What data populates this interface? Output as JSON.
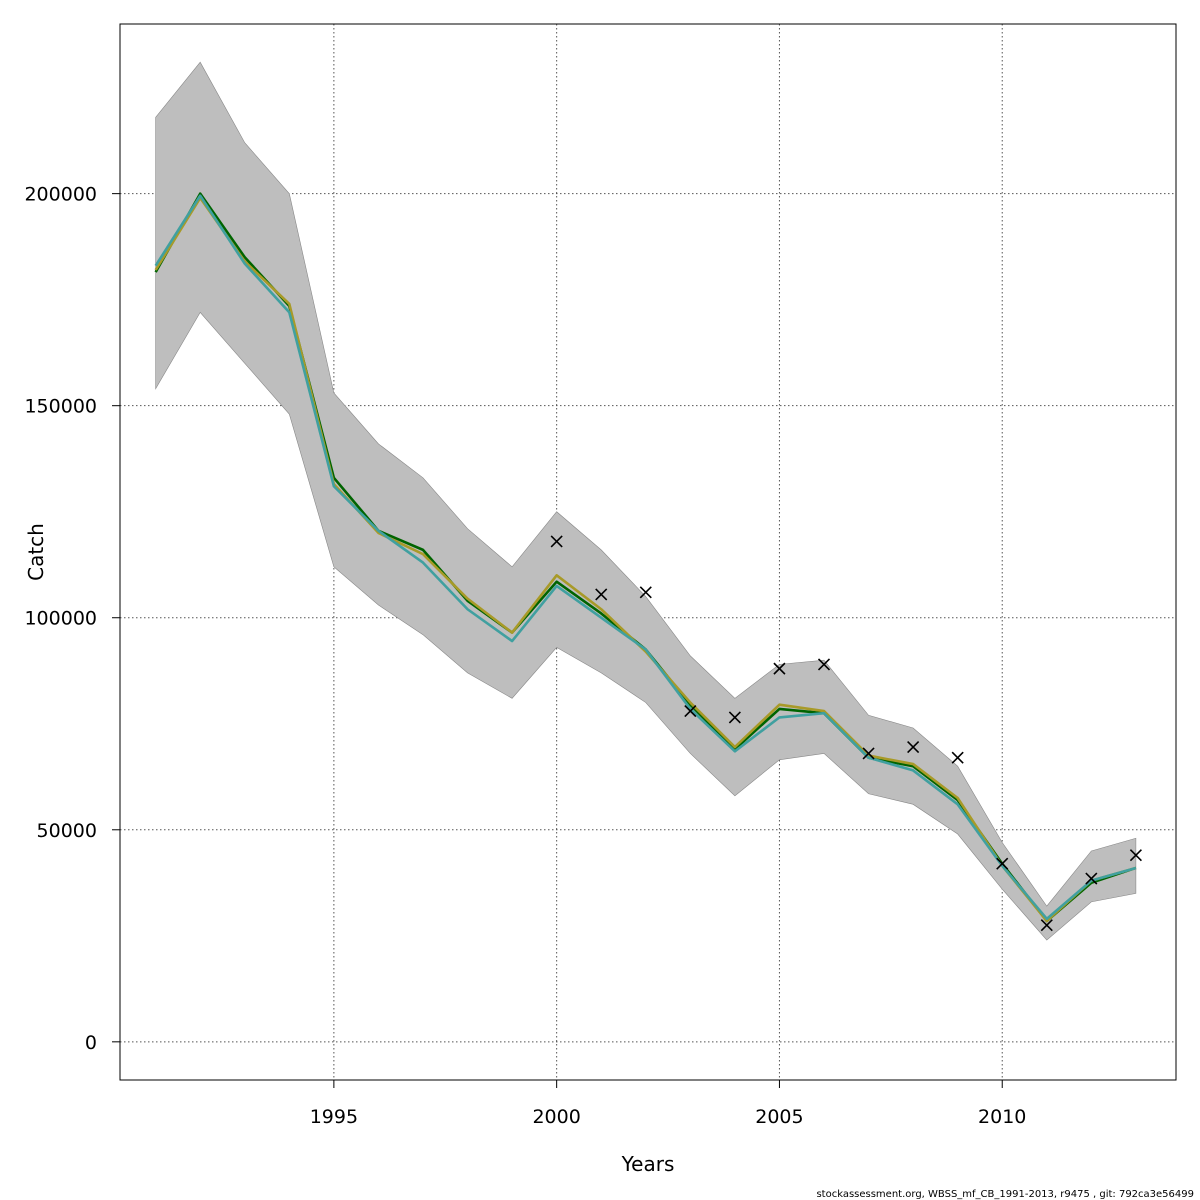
{
  "chart_data": {
    "type": "line",
    "title": "",
    "xlabel": "Years",
    "ylabel": "Catch",
    "xlim": [
      1990.2,
      2013.9
    ],
    "ylim": [
      -9000,
      240000
    ],
    "x_ticks": [
      1995,
      2000,
      2005,
      2010
    ],
    "y_ticks": [
      0,
      50000,
      100000,
      150000,
      200000
    ],
    "grid": true,
    "x": [
      1991,
      1992,
      1993,
      1994,
      1995,
      1996,
      1997,
      1998,
      1999,
      2000,
      2001,
      2002,
      2003,
      2004,
      2005,
      2006,
      2007,
      2008,
      2009,
      2010,
      2011,
      2012,
      2013
    ],
    "band": {
      "upper": [
        218000,
        231000,
        212000,
        200000,
        153000,
        141000,
        133000,
        121000,
        112000,
        125000,
        116000,
        105000,
        91000,
        81000,
        89000,
        90000,
        77000,
        74000,
        65000,
        47000,
        32000,
        45000,
        48000
      ],
      "lower": [
        154000,
        172000,
        160000,
        148000,
        112000,
        103000,
        96000,
        87000,
        81000,
        93000,
        87000,
        80000,
        68000,
        58000,
        66500,
        68000,
        58500,
        56000,
        49000,
        36000,
        24000,
        33000,
        35000
      ],
      "color": "#bebebe"
    },
    "series": [
      {
        "color": "#006400",
        "values": [
          181500,
          200000,
          185000,
          173500,
          133000,
          120500,
          116000,
          104000,
          96500,
          108500,
          101000,
          92500,
          79500,
          69000,
          78500,
          77500,
          67000,
          65000,
          57000,
          42000,
          28500,
          37500,
          41000
        ]
      },
      {
        "color": "#a89a28",
        "values": [
          182000,
          199000,
          184000,
          174000,
          131500,
          120000,
          115000,
          104500,
          96500,
          110000,
          102000,
          92000,
          80000,
          69500,
          79500,
          78000,
          67500,
          65500,
          57500,
          41500,
          28500,
          38000,
          41000
        ]
      },
      {
        "color": "#40a0a0",
        "values": [
          183000,
          199500,
          183500,
          172000,
          131000,
          120500,
          113000,
          102000,
          94500,
          107500,
          100000,
          92500,
          78500,
          68500,
          76500,
          77500,
          67000,
          64000,
          56000,
          41500,
          29000,
          38000,
          41000
        ]
      }
    ],
    "observations": {
      "marker": "x",
      "color": "#000000",
      "x": [
        2000,
        2001,
        2002,
        2003,
        2004,
        2005,
        2006,
        2007,
        2008,
        2009,
        2010,
        2011,
        2012,
        2013
      ],
      "y": [
        118000,
        105500,
        106000,
        78000,
        76500,
        88000,
        89000,
        68000,
        69500,
        67000,
        42000,
        27500,
        38500,
        44000
      ]
    },
    "footer": "stockassessment.org, WBSS_mf_CB_1991-2013, r9475 , git: 792ca3e56499"
  }
}
